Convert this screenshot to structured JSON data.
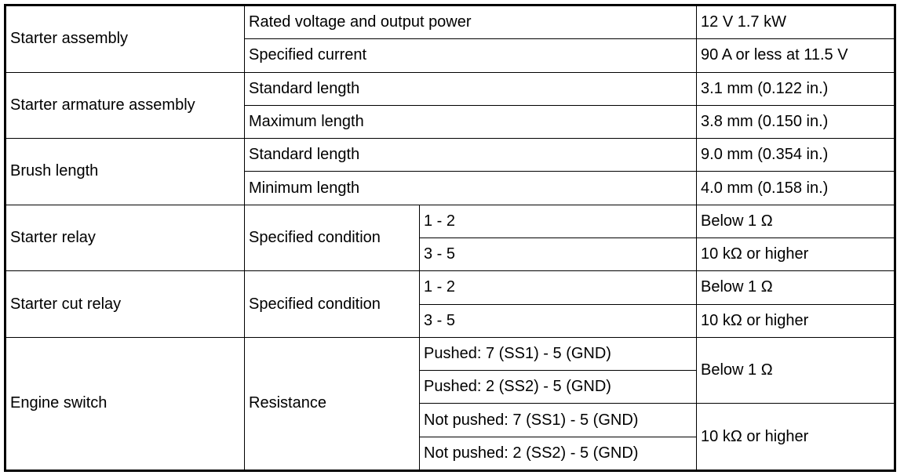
{
  "starter_assembly": {
    "label": "Starter assembly",
    "items": [
      {
        "name": "Rated voltage and output power",
        "value": "12 V 1.7 kW"
      },
      {
        "name": "Specified current",
        "value": "90 A or less at 11.5 V"
      }
    ]
  },
  "armature": {
    "label": "Starter armature assembly",
    "items": [
      {
        "name": "Standard length",
        "value": "3.1 mm (0.122 in.)"
      },
      {
        "name": "Maximum length",
        "value": "3.8 mm (0.150 in.)"
      }
    ]
  },
  "brush": {
    "label": "Brush length",
    "items": [
      {
        "name": "Standard length",
        "value": "9.0 mm (0.354 in.)"
      },
      {
        "name": "Minimum length",
        "value": "4.0 mm (0.158 in.)"
      }
    ]
  },
  "starter_relay": {
    "label": "Starter relay",
    "condition": "Specified condition",
    "items": [
      {
        "terminal": "1 - 2",
        "value": "Below 1 Ω"
      },
      {
        "terminal": "3 - 5",
        "value": "10 kΩ or higher"
      }
    ]
  },
  "cut_relay": {
    "label": "Starter cut relay",
    "condition": "Specified condition",
    "items": [
      {
        "terminal": "1 - 2",
        "value": "Below 1 Ω"
      },
      {
        "terminal": "3 - 5",
        "value": "10 kΩ or higher"
      }
    ]
  },
  "engine_switch": {
    "label": "Engine switch",
    "condition": "Resistance",
    "terminals": [
      "Pushed: 7 (SS1) - 5 (GND)",
      "Pushed: 2 (SS2) - 5 (GND)",
      "Not pushed: 7 (SS1) - 5 (GND)",
      "Not pushed: 2 (SS2) - 5 (GND)"
    ],
    "values": [
      "Below 1 Ω",
      "10 kΩ or higher"
    ]
  }
}
